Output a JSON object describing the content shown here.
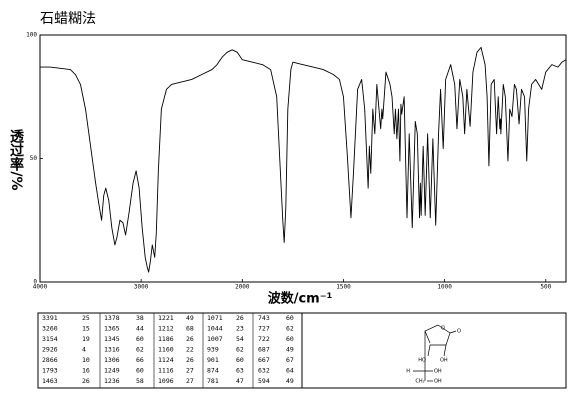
{
  "chart_data": {
    "type": "line",
    "title": "石蜡糊法",
    "xlabel": "波数/cm⁻¹",
    "ylabel": "透过率/%",
    "color": "#000000",
    "xlim": [
      4000,
      400
    ],
    "xticks": [
      4000,
      3000,
      2000,
      1500,
      1000,
      500
    ],
    "ylim": [
      0,
      100
    ],
    "yticks": [
      0,
      50,
      100
    ],
    "x": [
      4000,
      3900,
      3800,
      3700,
      3650,
      3600,
      3550,
      3500,
      3450,
      3420,
      3391,
      3370,
      3350,
      3320,
      3290,
      3260,
      3240,
      3210,
      3180,
      3154,
      3120,
      3080,
      3050,
      3020,
      2990,
      2960,
      2940,
      2926,
      2910,
      2890,
      2866,
      2850,
      2830,
      2800,
      2750,
      2700,
      2600,
      2500,
      2400,
      2300,
      2250,
      2200,
      2150,
      2100,
      2050,
      2000,
      1950,
      1900,
      1860,
      1830,
      1815,
      1800,
      1793,
      1785,
      1775,
      1760,
      1750,
      1700,
      1650,
      1600,
      1550,
      1520,
      1500,
      1480,
      1463,
      1450,
      1430,
      1410,
      1395,
      1378,
      1372,
      1365,
      1355,
      1345,
      1335,
      1316,
      1310,
      1306,
      1290,
      1270,
      1260,
      1249,
      1243,
      1236,
      1228,
      1221,
      1216,
      1212,
      1200,
      1186,
      1175,
      1160,
      1145,
      1135,
      1124,
      1120,
      1116,
      1106,
      1096,
      1084,
      1071,
      1058,
      1044,
      1030,
      1020,
      1007,
      995,
      970,
      950,
      939,
      925,
      910,
      901,
      890,
      874,
      860,
      840,
      820,
      800,
      790,
      781,
      770,
      755,
      743,
      735,
      727,
      724,
      722,
      710,
      700,
      687,
      678,
      667,
      655,
      645,
      632,
      620,
      605,
      594,
      585,
      570,
      550,
      520,
      500,
      470,
      440,
      420,
      400
    ],
    "values": [
      87,
      87,
      86.5,
      86,
      84,
      80,
      70,
      55,
      40,
      32,
      25,
      35,
      38,
      33,
      22,
      15,
      18,
      25,
      24,
      19,
      28,
      40,
      45,
      38,
      22,
      10,
      6,
      4,
      8,
      15,
      10,
      20,
      45,
      70,
      78,
      80,
      81,
      82,
      84,
      86,
      88,
      91,
      93,
      94,
      93,
      90,
      89,
      88,
      86,
      75,
      50,
      25,
      16,
      30,
      70,
      86,
      89,
      88,
      87,
      86,
      84,
      82,
      75,
      50,
      26,
      45,
      78,
      82,
      70,
      38,
      55,
      44,
      70,
      60,
      80,
      62,
      70,
      66,
      85,
      80,
      75,
      60,
      70,
      58,
      70,
      49,
      72,
      68,
      75,
      26,
      60,
      22,
      65,
      60,
      26,
      40,
      27,
      55,
      27,
      60,
      26,
      58,
      23,
      60,
      78,
      54,
      82,
      88,
      80,
      62,
      82,
      75,
      60,
      78,
      63,
      85,
      93,
      95,
      88,
      75,
      47,
      80,
      82,
      60,
      75,
      62,
      66,
      60,
      80,
      75,
      49,
      70,
      67,
      80,
      78,
      64,
      78,
      75,
      49,
      70,
      80,
      82,
      78,
      85,
      88,
      87,
      89,
      90
    ]
  },
  "peak_table": {
    "rows": [
      [
        3391,
        25
      ],
      [
        3260,
        15
      ],
      [
        3154,
        19
      ],
      [
        2926,
        4
      ],
      [
        2866,
        10
      ],
      [
        1793,
        16
      ],
      [
        1463,
        26
      ],
      [
        1378,
        38
      ],
      [
        1365,
        44
      ],
      [
        1345,
        60
      ],
      [
        1316,
        62
      ],
      [
        1306,
        66
      ],
      [
        1249,
        60
      ],
      [
        1236,
        58
      ],
      [
        1221,
        49
      ],
      [
        1212,
        68
      ],
      [
        1186,
        26
      ],
      [
        1160,
        22
      ],
      [
        1124,
        26
      ],
      [
        1116,
        27
      ],
      [
        1096,
        27
      ],
      [
        1071,
        26
      ],
      [
        1044,
        23
      ],
      [
        1007,
        54
      ],
      [
        939,
        62
      ],
      [
        901,
        60
      ],
      [
        874,
        63
      ],
      [
        781,
        47
      ],
      [
        743,
        60
      ],
      [
        727,
        62
      ],
      [
        722,
        60
      ],
      [
        687,
        49
      ],
      [
        667,
        67
      ],
      [
        632,
        64
      ],
      [
        594,
        49
      ]
    ]
  },
  "structure": {
    "labels": [
      "O",
      "O",
      "HO",
      "OH",
      "H",
      "OH",
      "CH₂",
      "OH"
    ]
  }
}
